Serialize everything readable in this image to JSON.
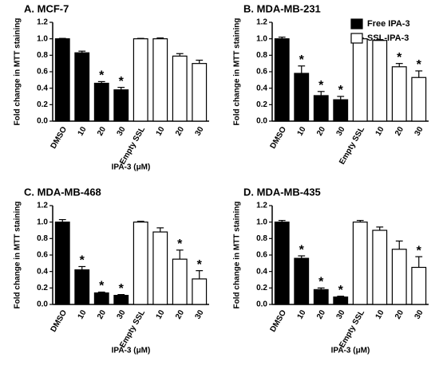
{
  "chart_data": [
    {
      "type": "bar",
      "title": "A. MCF-7",
      "y_label": "Fold change in MTT staining",
      "x_label": "IPA-3 (μM)",
      "categories": [
        "DMSO",
        "10",
        "20",
        "30",
        "Empty SSL",
        "10",
        "20",
        "30"
      ],
      "ylim": [
        0,
        1.2
      ],
      "yticks": [
        {
          "value": 0,
          "label": "0.0"
        },
        0.2,
        0.4,
        0.6,
        0.8,
        {
          "value": 1,
          "label": "1.0"
        },
        1.2
      ],
      "series": [
        {
          "name": "Free IPA-3",
          "color": "#000000",
          "values": [
            1.0,
            0.83,
            0.46,
            0.38,
            null,
            null,
            null,
            null
          ],
          "errors": [
            0.005,
            0.02,
            0.02,
            0.03,
            null,
            null,
            null,
            null
          ],
          "annotations": [
            null,
            null,
            "*",
            "*",
            null,
            null,
            null,
            null
          ]
        },
        {
          "name": "SSL-IPA-3",
          "color": "#ffffff",
          "values": [
            null,
            null,
            null,
            null,
            1.0,
            1.0,
            0.79,
            0.7
          ],
          "errors": [
            null,
            null,
            null,
            null,
            0.005,
            0.01,
            0.03,
            0.04
          ],
          "annotations": [
            null,
            null,
            null,
            null,
            null,
            null,
            null,
            null
          ]
        }
      ]
    },
    {
      "type": "bar",
      "title": "B. MDA-MB-231",
      "y_label": "Fold change in MTT staining",
      "legend": true,
      "categories": [
        "DMSO",
        "10",
        "20",
        "30",
        "Empty SSL",
        "10",
        "20",
        "30"
      ],
      "ylim": [
        0,
        1.2
      ],
      "yticks": [
        {
          "value": 0,
          "label": "0.0"
        },
        0.2,
        0.4,
        0.6,
        0.8,
        {
          "value": 1,
          "label": "1.0"
        },
        1.2
      ],
      "series": [
        {
          "name": "Free IPA-3",
          "color": "#000000",
          "values": [
            1.0,
            0.58,
            0.31,
            0.26,
            null,
            null,
            null,
            null
          ],
          "errors": [
            0.02,
            0.09,
            0.05,
            0.04,
            null,
            null,
            null,
            null
          ],
          "annotations": [
            null,
            "*",
            "*",
            "*",
            null,
            null,
            null,
            null
          ]
        },
        {
          "name": "SSL-IPA-3",
          "color": "#ffffff",
          "values": [
            null,
            null,
            null,
            null,
            1.0,
            0.98,
            0.66,
            0.53
          ],
          "errors": [
            null,
            null,
            null,
            null,
            0.01,
            0.01,
            0.04,
            0.08
          ],
          "annotations": [
            null,
            null,
            null,
            null,
            null,
            null,
            "*",
            "*"
          ]
        }
      ]
    },
    {
      "type": "bar",
      "title": "C. MDA-MB-468",
      "y_label": "Fold change in MTT staining",
      "x_label": "IPA-3 (μM)",
      "categories": [
        "DMSO",
        "10",
        "20",
        "30",
        "Empty SSL",
        "10",
        "20",
        "30"
      ],
      "ylim": [
        0,
        1.2
      ],
      "yticks": [
        {
          "value": 0,
          "label": "0.0"
        },
        0.2,
        0.4,
        0.6,
        0.8,
        {
          "value": 1,
          "label": "1.0"
        },
        1.2
      ],
      "series": [
        {
          "name": "Free IPA-3",
          "color": "#000000",
          "values": [
            1.0,
            0.42,
            0.14,
            0.11,
            null,
            null,
            null,
            null
          ],
          "errors": [
            0.03,
            0.04,
            0.01,
            0.01,
            null,
            null,
            null,
            null
          ],
          "annotations": [
            null,
            "*",
            "*",
            "*",
            null,
            null,
            null,
            null
          ]
        },
        {
          "name": "SSL-IPA-3",
          "color": "#ffffff",
          "values": [
            null,
            null,
            null,
            null,
            1.0,
            0.88,
            0.55,
            0.31
          ],
          "errors": [
            null,
            null,
            null,
            null,
            0.01,
            0.05,
            0.11,
            0.1
          ],
          "annotations": [
            null,
            null,
            null,
            null,
            null,
            null,
            "*",
            "*"
          ]
        }
      ]
    },
    {
      "type": "bar",
      "title": "D. MDA-MB-435",
      "y_label": "Fold change in MTT staining",
      "x_label": "IPA-3 (μM)",
      "categories": [
        "DMSO",
        "10",
        "20",
        "30",
        "Empty SSL",
        "10",
        "20",
        "30"
      ],
      "ylim": [
        0,
        1.2
      ],
      "yticks": [
        {
          "value": 0,
          "label": "0.0"
        },
        0.2,
        0.4,
        0.6,
        0.8,
        {
          "value": 1,
          "label": "1.0"
        },
        1.2
      ],
      "series": [
        {
          "name": "Free IPA-3",
          "color": "#000000",
          "values": [
            1.0,
            0.56,
            0.18,
            0.09,
            null,
            null,
            null,
            null
          ],
          "errors": [
            0.02,
            0.03,
            0.02,
            0.01,
            null,
            null,
            null,
            null
          ],
          "annotations": [
            null,
            "*",
            "*",
            "*",
            null,
            null,
            null,
            null
          ]
        },
        {
          "name": "SSL-IPA-3",
          "color": "#ffffff",
          "values": [
            null,
            null,
            null,
            null,
            1.0,
            0.9,
            0.67,
            0.45
          ],
          "errors": [
            null,
            null,
            null,
            null,
            0.02,
            0.04,
            0.1,
            0.13
          ],
          "annotations": [
            null,
            null,
            null,
            null,
            null,
            null,
            null,
            "*"
          ]
        }
      ]
    }
  ]
}
